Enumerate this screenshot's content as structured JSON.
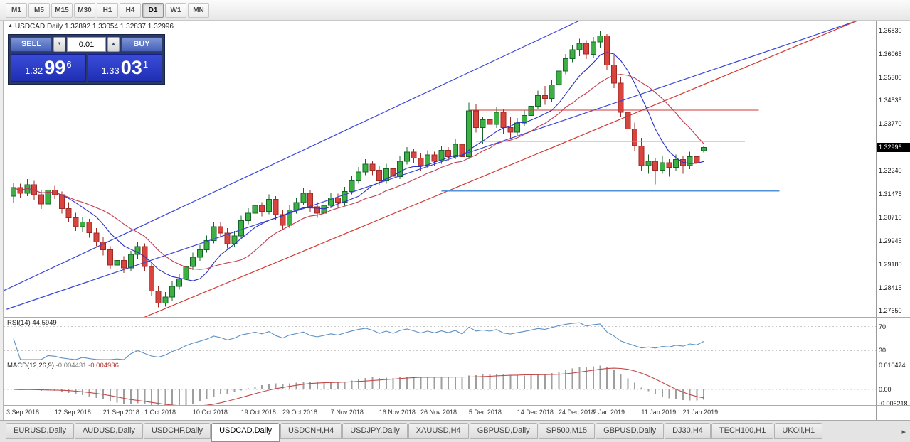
{
  "toolbar": {
    "timeframes": [
      "M1",
      "M5",
      "M15",
      "M30",
      "H1",
      "H4",
      "D1",
      "W1",
      "MN"
    ],
    "active": "D1"
  },
  "chart": {
    "title": "USDCAD,Daily",
    "ohlc_display": "1.32892 1.33054 1.32837 1.32996",
    "open": "1.32892",
    "high": "1.33054",
    "low": "1.32837",
    "close": "1.32996"
  },
  "trade_panel": {
    "sell_label": "SELL",
    "buy_label": "BUY",
    "volume": "0.01",
    "sell_price": {
      "prefix": "1.32",
      "big": "99",
      "sup": "6"
    },
    "buy_price": {
      "prefix": "1.33",
      "big": "03",
      "sup": "1"
    }
  },
  "icons": {
    "legend_collapse": "▲",
    "dropdown": "▼",
    "spin_up": "▲",
    "tab_scroll_right": "▸"
  },
  "price_scale": {
    "labels": [
      "1.36830",
      "1.36065",
      "1.35300",
      "1.34535",
      "1.33770",
      "1.33005",
      "1.32240",
      "1.31475",
      "1.30710",
      "1.29945",
      "1.29180",
      "1.28415",
      "1.27650"
    ],
    "current_price": "1.32996"
  },
  "rsi": {
    "label": "RSI(14)",
    "value": "44.5949",
    "levels": [
      70,
      30
    ],
    "scale_labels": [
      "70",
      "30"
    ]
  },
  "macd": {
    "label": "MACD(12,26,9)",
    "value_main": "-0.004431",
    "value_signal": "-0.004936",
    "scale_values": [
      0.010474,
      0,
      -0.006218
    ],
    "scale_labels": [
      "0.010474",
      "0.00",
      "-0.006218"
    ]
  },
  "dates": [
    "3 Sep 2018",
    "12 Sep 2018",
    "21 Sep 2018",
    "1 Oct 2018",
    "10 Oct 2018",
    "19 Oct 2018",
    "29 Oct 2018",
    "7 Nov 2018",
    "16 Nov 2018",
    "26 Nov 2018",
    "5 Dec 2018",
    "14 Dec 2018",
    "24 Dec 2018",
    "2 Jan 2019",
    "11 Jan 2019",
    "21 Jan 2019"
  ],
  "tabs": {
    "items": [
      "EURUSD,Daily",
      "AUDUSD,Daily",
      "USDCHF,Daily",
      "USDCAD,Daily",
      "USDCNH,H4",
      "USDJPY,Daily",
      "XAUUSD,H4",
      "GBPUSD,Daily",
      "SP500,M15",
      "GBPUSD,Daily",
      "DJ30,H4",
      "TECH100,H1",
      "UKOil,H1"
    ],
    "active_index": 3
  },
  "colors": {
    "candle_up": "#3cb043",
    "candle_up_border": "#17652b",
    "candle_down": "#d9443f",
    "candle_down_border": "#9c2b27",
    "ma_fast": "#2a31c4",
    "ma_slow": "#c23b50",
    "trend_blue": "#3b46d8",
    "trend_red": "#d03a30",
    "hline_red": "#d23535",
    "hline_yellow": "#b9bd17",
    "hline_blue": "#4f92d8",
    "rsi_line": "#5b8fc3",
    "macd_histogram": "#9e9e9e",
    "macd_signal": "#c04848",
    "level_dash": "#c9c9c9"
  },
  "chart_data": {
    "type": "candlestick",
    "symbol": "USDCAD",
    "timeframe": "Daily",
    "price_range": [
      1.2745,
      1.3715
    ],
    "date_label_indices": [
      0,
      7,
      14,
      20,
      27,
      34,
      40,
      47,
      54,
      60,
      67,
      74,
      80,
      85,
      92,
      98
    ],
    "candles": [
      [
        1.314,
        1.3185,
        1.3118,
        1.3168
      ],
      [
        1.3168,
        1.3181,
        1.3136,
        1.315
      ],
      [
        1.315,
        1.3196,
        1.3141,
        1.3178
      ],
      [
        1.3178,
        1.3191,
        1.3129,
        1.3145
      ],
      [
        1.3145,
        1.3161,
        1.3099,
        1.3115
      ],
      [
        1.3115,
        1.3176,
        1.3106,
        1.316
      ],
      [
        1.316,
        1.3174,
        1.3131,
        1.3145
      ],
      [
        1.3145,
        1.3156,
        1.3084,
        1.31
      ],
      [
        1.31,
        1.3121,
        1.3056,
        1.307
      ],
      [
        1.307,
        1.3086,
        1.3026,
        1.304
      ],
      [
        1.304,
        1.3071,
        1.3024,
        1.3055
      ],
      [
        1.3055,
        1.3066,
        1.3004,
        1.302
      ],
      [
        1.302,
        1.3036,
        1.2976,
        1.299
      ],
      [
        1.299,
        1.3006,
        1.2946,
        1.2965
      ],
      [
        1.2965,
        1.2976,
        1.2901,
        1.2915
      ],
      [
        1.2915,
        1.2946,
        1.2899,
        1.293
      ],
      [
        1.293,
        1.2944,
        1.2889,
        1.2905
      ],
      [
        1.2905,
        1.2961,
        1.2896,
        1.295
      ],
      [
        1.295,
        1.2991,
        1.2934,
        1.2975
      ],
      [
        1.2975,
        1.2986,
        1.2896,
        1.291
      ],
      [
        1.291,
        1.2921,
        1.2814,
        1.283
      ],
      [
        1.283,
        1.2846,
        1.2776,
        1.279
      ],
      [
        1.279,
        1.2826,
        1.2779,
        1.281
      ],
      [
        1.281,
        1.2861,
        1.2799,
        1.2845
      ],
      [
        1.2845,
        1.2886,
        1.2834,
        1.287
      ],
      [
        1.287,
        1.2926,
        1.2861,
        1.291
      ],
      [
        1.291,
        1.2956,
        1.2899,
        1.294
      ],
      [
        1.294,
        1.2981,
        1.2929,
        1.2965
      ],
      [
        1.2965,
        1.3011,
        1.2956,
        1.2995
      ],
      [
        1.2995,
        1.3056,
        1.2986,
        1.304
      ],
      [
        1.304,
        1.3054,
        1.3004,
        1.302
      ],
      [
        1.302,
        1.3036,
        1.2969,
        1.2985
      ],
      [
        1.2985,
        1.3026,
        1.2974,
        1.301
      ],
      [
        1.301,
        1.3076,
        1.3001,
        1.306
      ],
      [
        1.306,
        1.3101,
        1.3049,
        1.3085
      ],
      [
        1.3085,
        1.3126,
        1.3076,
        1.311
      ],
      [
        1.311,
        1.3121,
        1.3074,
        1.309
      ],
      [
        1.309,
        1.3146,
        1.3081,
        1.313
      ],
      [
        1.313,
        1.3141,
        1.3064,
        1.308
      ],
      [
        1.308,
        1.3096,
        1.3029,
        1.3045
      ],
      [
        1.3045,
        1.3111,
        1.3036,
        1.3095
      ],
      [
        1.3095,
        1.3136,
        1.3084,
        1.312
      ],
      [
        1.312,
        1.3166,
        1.3111,
        1.315
      ],
      [
        1.315,
        1.3161,
        1.3089,
        1.3105
      ],
      [
        1.3105,
        1.3121,
        1.3069,
        1.3085
      ],
      [
        1.3085,
        1.3126,
        1.3074,
        1.311
      ],
      [
        1.311,
        1.3151,
        1.3101,
        1.3135
      ],
      [
        1.3135,
        1.3149,
        1.3104,
        1.312
      ],
      [
        1.312,
        1.3171,
        1.3109,
        1.3155
      ],
      [
        1.3155,
        1.3206,
        1.3146,
        1.319
      ],
      [
        1.319,
        1.3236,
        1.3181,
        1.322
      ],
      [
        1.322,
        1.3261,
        1.3209,
        1.3245
      ],
      [
        1.3245,
        1.3256,
        1.3209,
        1.3225
      ],
      [
        1.3225,
        1.3241,
        1.3176,
        1.319
      ],
      [
        1.319,
        1.3246,
        1.3181,
        1.323
      ],
      [
        1.323,
        1.3241,
        1.3189,
        1.3205
      ],
      [
        1.3205,
        1.3271,
        1.3196,
        1.3255
      ],
      [
        1.3255,
        1.3301,
        1.3244,
        1.3285
      ],
      [
        1.3285,
        1.3296,
        1.3249,
        1.3265
      ],
      [
        1.3265,
        1.3281,
        1.3224,
        1.324
      ],
      [
        1.324,
        1.3291,
        1.3231,
        1.3275
      ],
      [
        1.3275,
        1.3286,
        1.3239,
        1.3255
      ],
      [
        1.3255,
        1.3306,
        1.3246,
        1.329
      ],
      [
        1.329,
        1.3301,
        1.3254,
        1.327
      ],
      [
        1.327,
        1.3326,
        1.3261,
        1.331
      ],
      [
        1.331,
        1.3331,
        1.3249,
        1.327
      ],
      [
        1.327,
        1.3446,
        1.3261,
        1.342
      ],
      [
        1.342,
        1.3441,
        1.3349,
        1.3365
      ],
      [
        1.3365,
        1.3401,
        1.3311,
        1.339
      ],
      [
        1.339,
        1.3421,
        1.3356,
        1.3375
      ],
      [
        1.3375,
        1.3431,
        1.3364,
        1.3415
      ],
      [
        1.3415,
        1.3426,
        1.3344,
        1.3365
      ],
      [
        1.3365,
        1.3401,
        1.3329,
        1.335
      ],
      [
        1.335,
        1.3396,
        1.3339,
        1.338
      ],
      [
        1.338,
        1.3421,
        1.3369,
        1.3405
      ],
      [
        1.3405,
        1.3446,
        1.3394,
        1.3435
      ],
      [
        1.3435,
        1.3486,
        1.3424,
        1.347
      ],
      [
        1.347,
        1.3501,
        1.3439,
        1.346
      ],
      [
        1.346,
        1.3521,
        1.3449,
        1.3505
      ],
      [
        1.3505,
        1.3566,
        1.3494,
        1.355
      ],
      [
        1.355,
        1.3606,
        1.3539,
        1.359
      ],
      [
        1.359,
        1.3636,
        1.3579,
        1.362
      ],
      [
        1.362,
        1.3656,
        1.3599,
        1.364
      ],
      [
        1.364,
        1.3651,
        1.3589,
        1.3605
      ],
      [
        1.3605,
        1.3661,
        1.3594,
        1.3645
      ],
      [
        1.3645,
        1.3683,
        1.3624,
        1.3665
      ],
      [
        1.3665,
        1.3671,
        1.3554,
        1.357
      ],
      [
        1.357,
        1.3601,
        1.3494,
        1.351
      ],
      [
        1.351,
        1.3531,
        1.3399,
        1.3415
      ],
      [
        1.3415,
        1.3441,
        1.3344,
        1.336
      ],
      [
        1.336,
        1.3381,
        1.3289,
        1.3305
      ],
      [
        1.3305,
        1.3331,
        1.3224,
        1.324
      ],
      [
        1.324,
        1.3276,
        1.3214,
        1.3255
      ],
      [
        1.3255,
        1.3266,
        1.3179,
        1.3225
      ],
      [
        1.3225,
        1.3271,
        1.3214,
        1.325
      ],
      [
        1.325,
        1.3261,
        1.3204,
        1.3235
      ],
      [
        1.3235,
        1.3276,
        1.3224,
        1.326
      ],
      [
        1.326,
        1.3271,
        1.3214,
        1.324
      ],
      [
        1.324,
        1.3286,
        1.3229,
        1.327
      ],
      [
        1.327,
        1.3281,
        1.3229,
        1.325
      ],
      [
        1.32892,
        1.33054,
        1.32837,
        1.32996
      ]
    ],
    "moving_averages": [
      {
        "period": 8,
        "color_key": "ma_fast"
      },
      {
        "period": 15,
        "color_key": "ma_slow"
      }
    ],
    "trend_lines": [
      {
        "from": [
          -2,
          1.2825
        ],
        "to": [
          82,
          1.3715
        ],
        "color_key": "trend_blue"
      },
      {
        "from": [
          -1,
          1.277
        ],
        "to": [
          124,
          1.3728
        ],
        "color_key": "trend_blue"
      },
      {
        "from": [
          18,
          1.2735
        ],
        "to": [
          126,
          1.375
        ],
        "color_key": "trend_red"
      }
    ],
    "horizontal_lines": [
      {
        "price": 1.3422,
        "from": 66,
        "to": 108,
        "color_key": "hline_red",
        "width": 1.4
      },
      {
        "price": 1.332,
        "from": 67,
        "to": 106,
        "color_key": "hline_yellow",
        "width": 1.7
      },
      {
        "price": 1.3158,
        "from": 62,
        "to": 111,
        "color_key": "hline_blue",
        "width": 2
      }
    ],
    "rsi_period": 14,
    "macd_params": [
      12,
      26,
      9
    ],
    "rsi_display_range": [
      15,
      85
    ],
    "macd_display_range": [
      -0.0067,
      0.0125
    ]
  }
}
